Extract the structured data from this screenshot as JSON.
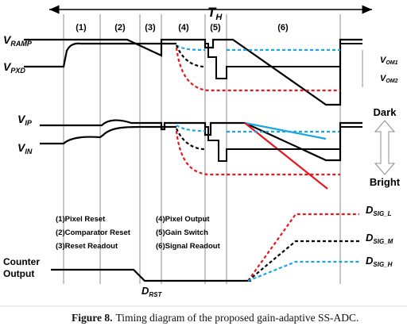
{
  "figure": {
    "caption_label": "Figure 8.",
    "caption_text": "Timing diagram of the proposed gain-adaptive SS-ADC."
  },
  "period_label": "T",
  "period_sub": "H",
  "phases": [
    "(1)",
    "(2)",
    "(3)",
    "(4)",
    "(5)",
    "(6)"
  ],
  "signals": {
    "vramp": {
      "main": "V",
      "sub": "RAMP"
    },
    "vpxd": {
      "main": "V",
      "sub": "PXD"
    },
    "vip": {
      "main": "V",
      "sub": "IP"
    },
    "vin": {
      "main": "V",
      "sub": "IN"
    },
    "counter_line1": "Counter",
    "counter_line2": "Output"
  },
  "annotations": {
    "vom1": {
      "main": "V",
      "sub": "OM1"
    },
    "vom2": {
      "main": "V",
      "sub": "OM2"
    },
    "drst": {
      "main": "D",
      "sub": "RST"
    },
    "dsig_l": {
      "main": "D",
      "sub": "SIG_L"
    },
    "dsig_m": {
      "main": "D",
      "sub": "SIG_M"
    },
    "dsig_h": {
      "main": "D",
      "sub": "SIG_H"
    },
    "dark": "Dark",
    "bright": "Bright"
  },
  "legend": [
    "(1)Pixel Reset",
    "(2)Comparator Reset",
    "(3)Reset Readout",
    "(4)Pixel Output",
    "(5)Gain Switch",
    "(6)Signal Readout"
  ],
  "colors": {
    "black": "#000000",
    "red": "#e8171f",
    "cyan": "#1aa6e0",
    "grid": "#8c8c8c"
  }
}
